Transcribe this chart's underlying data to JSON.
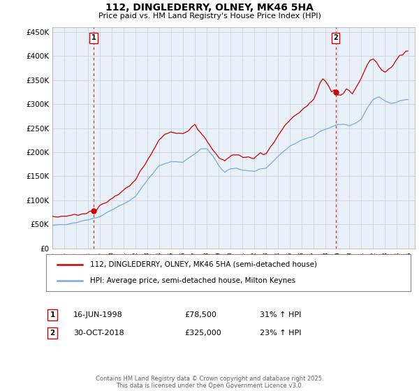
{
  "title": "112, DINGLEDERRY, OLNEY, MK46 5HA",
  "subtitle": "Price paid vs. HM Land Registry's House Price Index (HPI)",
  "ylim": [
    0,
    460000
  ],
  "yticks": [
    0,
    50000,
    100000,
    150000,
    200000,
    250000,
    300000,
    350000,
    400000,
    450000
  ],
  "ytick_labels": [
    "£0",
    "£50K",
    "£100K",
    "£150K",
    "£200K",
    "£250K",
    "£300K",
    "£350K",
    "£400K",
    "£450K"
  ],
  "xlim_start": 1995.0,
  "xlim_end": 2025.5,
  "xticks": [
    1995,
    1996,
    1997,
    1998,
    1999,
    2000,
    2001,
    2002,
    2003,
    2004,
    2005,
    2006,
    2007,
    2008,
    2009,
    2010,
    2011,
    2012,
    2013,
    2014,
    2015,
    2016,
    2017,
    2018,
    2019,
    2020,
    2021,
    2022,
    2023,
    2024,
    2025
  ],
  "line1_color": "#cc0000",
  "line2_color": "#7aaadd",
  "chart_bg": "#e8f0f8",
  "marker1_date": 1998.46,
  "marker1_value": 78500,
  "marker2_date": 2018.83,
  "marker2_value": 325000,
  "vline_color": "#cc0000",
  "legend_line1": "112, DINGLEDERRY, OLNEY, MK46 5HA (semi-detached house)",
  "legend_line2": "HPI: Average price, semi-detached house, Milton Keynes",
  "annotation1_date": "16-JUN-1998",
  "annotation1_price": "£78,500",
  "annotation1_hpi": "31% ↑ HPI",
  "annotation2_date": "30-OCT-2018",
  "annotation2_price": "£325,000",
  "annotation2_hpi": "23% ↑ HPI",
  "footer": "Contains HM Land Registry data © Crown copyright and database right 2025.\nThis data is licensed under the Open Government Licence v3.0.",
  "background_color": "#ffffff",
  "grid_color": "#ccccdd"
}
